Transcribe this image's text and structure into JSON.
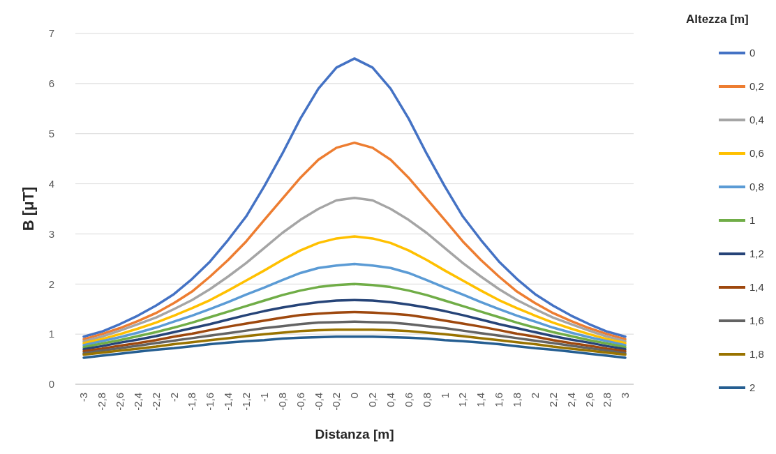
{
  "chart_data": {
    "type": "line",
    "xlabel": "Distanza [m]",
    "ylabel": "B [μT]",
    "legend_title": "Altezza [m]",
    "legend": "right",
    "grid": "y",
    "line_style": "solid",
    "marker": "none",
    "categories": [
      "-3",
      "-2,8",
      "-2,6",
      "-2,4",
      "-2,2",
      "-2",
      "-1,8",
      "-1,6",
      "-1,4",
      "-1,2",
      "-1",
      "-0,8",
      "-0,6",
      "-0,4",
      "-0,2",
      "0",
      "0,2",
      "0,4",
      "0,6",
      "0,8",
      "1",
      "1,2",
      "1,4",
      "1,6",
      "1,8",
      "2",
      "2,2",
      "2,4",
      "2,6",
      "2,8",
      "3"
    ],
    "ylim": [
      0,
      7
    ],
    "yticks": [
      0,
      1,
      2,
      3,
      4,
      5,
      6,
      7
    ],
    "series": [
      {
        "name": "0",
        "color": "#4472c4",
        "values": [
          0.95,
          1.05,
          1.2,
          1.37,
          1.57,
          1.8,
          2.1,
          2.45,
          2.88,
          3.35,
          3.95,
          4.6,
          5.3,
          5.9,
          6.32,
          6.5,
          6.32,
          5.9,
          5.3,
          4.6,
          3.95,
          3.35,
          2.88,
          2.45,
          2.1,
          1.8,
          1.57,
          1.37,
          1.2,
          1.05,
          0.95
        ]
      },
      {
        "name": "0,2",
        "color": "#ed7d31",
        "values": [
          0.9,
          1.0,
          1.12,
          1.26,
          1.42,
          1.62,
          1.85,
          2.15,
          2.48,
          2.85,
          3.28,
          3.7,
          4.12,
          4.48,
          4.72,
          4.82,
          4.72,
          4.48,
          4.12,
          3.7,
          3.28,
          2.85,
          2.48,
          2.15,
          1.85,
          1.62,
          1.42,
          1.26,
          1.12,
          1.0,
          0.9
        ]
      },
      {
        "name": "0,4",
        "color": "#a5a5a5",
        "values": [
          0.86,
          0.95,
          1.07,
          1.2,
          1.33,
          1.5,
          1.68,
          1.9,
          2.15,
          2.42,
          2.72,
          3.02,
          3.28,
          3.5,
          3.67,
          3.72,
          3.67,
          3.5,
          3.28,
          3.02,
          2.72,
          2.42,
          2.15,
          1.9,
          1.68,
          1.5,
          1.33,
          1.2,
          1.07,
          0.95,
          0.86
        ]
      },
      {
        "name": "0,6",
        "color": "#ffc000",
        "values": [
          0.82,
          0.9,
          1.0,
          1.11,
          1.23,
          1.37,
          1.52,
          1.68,
          1.87,
          2.07,
          2.27,
          2.48,
          2.67,
          2.82,
          2.91,
          2.95,
          2.91,
          2.82,
          2.67,
          2.48,
          2.27,
          2.07,
          1.87,
          1.68,
          1.52,
          1.37,
          1.23,
          1.11,
          1.0,
          0.9,
          0.82
        ]
      },
      {
        "name": "0,8",
        "color": "#5b9bd5",
        "values": [
          0.78,
          0.86,
          0.94,
          1.03,
          1.13,
          1.25,
          1.37,
          1.5,
          1.64,
          1.79,
          1.93,
          2.08,
          2.22,
          2.32,
          2.37,
          2.4,
          2.37,
          2.32,
          2.22,
          2.08,
          1.93,
          1.79,
          1.64,
          1.5,
          1.37,
          1.25,
          1.13,
          1.03,
          0.94,
          0.86,
          0.78
        ]
      },
      {
        "name": "1",
        "color": "#70ad47",
        "values": [
          0.74,
          0.81,
          0.88,
          0.96,
          1.04,
          1.13,
          1.23,
          1.34,
          1.45,
          1.56,
          1.67,
          1.78,
          1.87,
          1.94,
          1.98,
          2.0,
          1.98,
          1.94,
          1.87,
          1.78,
          1.67,
          1.56,
          1.45,
          1.34,
          1.23,
          1.13,
          1.04,
          0.96,
          0.88,
          0.81,
          0.74
        ]
      },
      {
        "name": "1,2",
        "color": "#264478",
        "values": [
          0.7,
          0.76,
          0.83,
          0.89,
          0.96,
          1.04,
          1.12,
          1.2,
          1.29,
          1.38,
          1.46,
          1.53,
          1.59,
          1.64,
          1.67,
          1.68,
          1.67,
          1.64,
          1.59,
          1.53,
          1.46,
          1.38,
          1.29,
          1.2,
          1.12,
          1.04,
          0.96,
          0.89,
          0.83,
          0.76,
          0.7
        ]
      },
      {
        "name": "1,4",
        "color": "#9e480e",
        "values": [
          0.66,
          0.71,
          0.77,
          0.82,
          0.88,
          0.95,
          1.01,
          1.08,
          1.15,
          1.21,
          1.27,
          1.33,
          1.38,
          1.41,
          1.43,
          1.44,
          1.43,
          1.41,
          1.38,
          1.33,
          1.27,
          1.21,
          1.15,
          1.08,
          1.01,
          0.95,
          0.88,
          0.82,
          0.77,
          0.71,
          0.66
        ]
      },
      {
        "name": "1,6",
        "color": "#636363",
        "values": [
          0.62,
          0.67,
          0.72,
          0.77,
          0.82,
          0.87,
          0.92,
          0.97,
          1.02,
          1.07,
          1.12,
          1.16,
          1.2,
          1.23,
          1.24,
          1.25,
          1.24,
          1.23,
          1.2,
          1.16,
          1.12,
          1.07,
          1.02,
          0.97,
          0.92,
          0.87,
          0.82,
          0.77,
          0.72,
          0.67,
          0.62
        ]
      },
      {
        "name": "1,8",
        "color": "#997300",
        "values": [
          0.59,
          0.63,
          0.67,
          0.71,
          0.75,
          0.8,
          0.84,
          0.88,
          0.92,
          0.96,
          1.0,
          1.03,
          1.06,
          1.08,
          1.09,
          1.09,
          1.09,
          1.08,
          1.06,
          1.03,
          1.0,
          0.96,
          0.92,
          0.88,
          0.84,
          0.8,
          0.75,
          0.71,
          0.67,
          0.63,
          0.59
        ]
      },
      {
        "name": "2",
        "color": "#255e91",
        "values": [
          0.53,
          0.57,
          0.61,
          0.65,
          0.69,
          0.72,
          0.76,
          0.8,
          0.83,
          0.86,
          0.88,
          0.91,
          0.93,
          0.94,
          0.95,
          0.95,
          0.95,
          0.94,
          0.93,
          0.91,
          0.88,
          0.86,
          0.83,
          0.8,
          0.76,
          0.72,
          0.69,
          0.65,
          0.61,
          0.57,
          0.53
        ]
      }
    ]
  }
}
